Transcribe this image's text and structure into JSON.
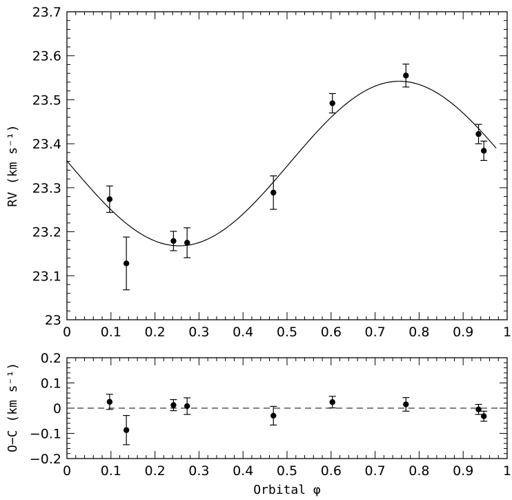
{
  "chart_data": [
    {
      "type": "scatter",
      "panel": "main",
      "xlabel": "",
      "ylabel": "RV (km s⁻¹)",
      "xlim": [
        0,
        1
      ],
      "ylim": [
        23.0,
        23.7
      ],
      "xticks": [
        "0",
        "0.1",
        "0.2",
        "0.3",
        "0.4",
        "0.5",
        "0.6",
        "0.7",
        "0.8",
        "0.9",
        "1"
      ],
      "yticks": [
        "23",
        "23.1",
        "23.2",
        "23.3",
        "23.4",
        "23.5",
        "23.6",
        "23.7"
      ],
      "series": [
        {
          "kind": "points_with_errorbars",
          "x": [
            0.097,
            0.135,
            0.242,
            0.273,
            0.469,
            0.603,
            0.77,
            0.935,
            0.947
          ],
          "y": [
            23.274,
            23.128,
            23.179,
            23.175,
            23.289,
            23.492,
            23.555,
            23.422,
            23.384
          ],
          "err": [
            0.03,
            0.06,
            0.022,
            0.034,
            0.038,
            0.022,
            0.026,
            0.022,
            0.022
          ]
        },
        {
          "kind": "model_curve",
          "model": "sinusoid",
          "mean": 23.355,
          "semi_amplitude": 0.187,
          "phase_of_minimum": 0.255,
          "x_range": [
            0,
            0.975
          ]
        }
      ]
    },
    {
      "type": "scatter",
      "panel": "residuals",
      "xlabel": "Orbital φ",
      "ylabel": "O−C (km s⁻¹)",
      "xlim": [
        0,
        1
      ],
      "ylim": [
        -0.2,
        0.2
      ],
      "xticks": [
        "0",
        "0.1",
        "0.2",
        "0.3",
        "0.4",
        "0.5",
        "0.6",
        "0.7",
        "0.8",
        "0.9",
        "1"
      ],
      "yticks": [
        "0.2",
        "0.1",
        "0",
        "−0.1",
        "−0.2"
      ],
      "reference_line": 0,
      "series": [
        {
          "kind": "points_with_errorbars",
          "x": [
            0.097,
            0.135,
            0.242,
            0.273,
            0.469,
            0.603,
            0.77,
            0.935,
            0.947
          ],
          "y": [
            0.025,
            -0.087,
            0.012,
            0.008,
            -0.03,
            0.024,
            0.015,
            -0.005,
            -0.032
          ],
          "err": [
            0.03,
            0.058,
            0.022,
            0.033,
            0.037,
            0.023,
            0.027,
            0.02,
            0.02
          ]
        }
      ]
    }
  ]
}
